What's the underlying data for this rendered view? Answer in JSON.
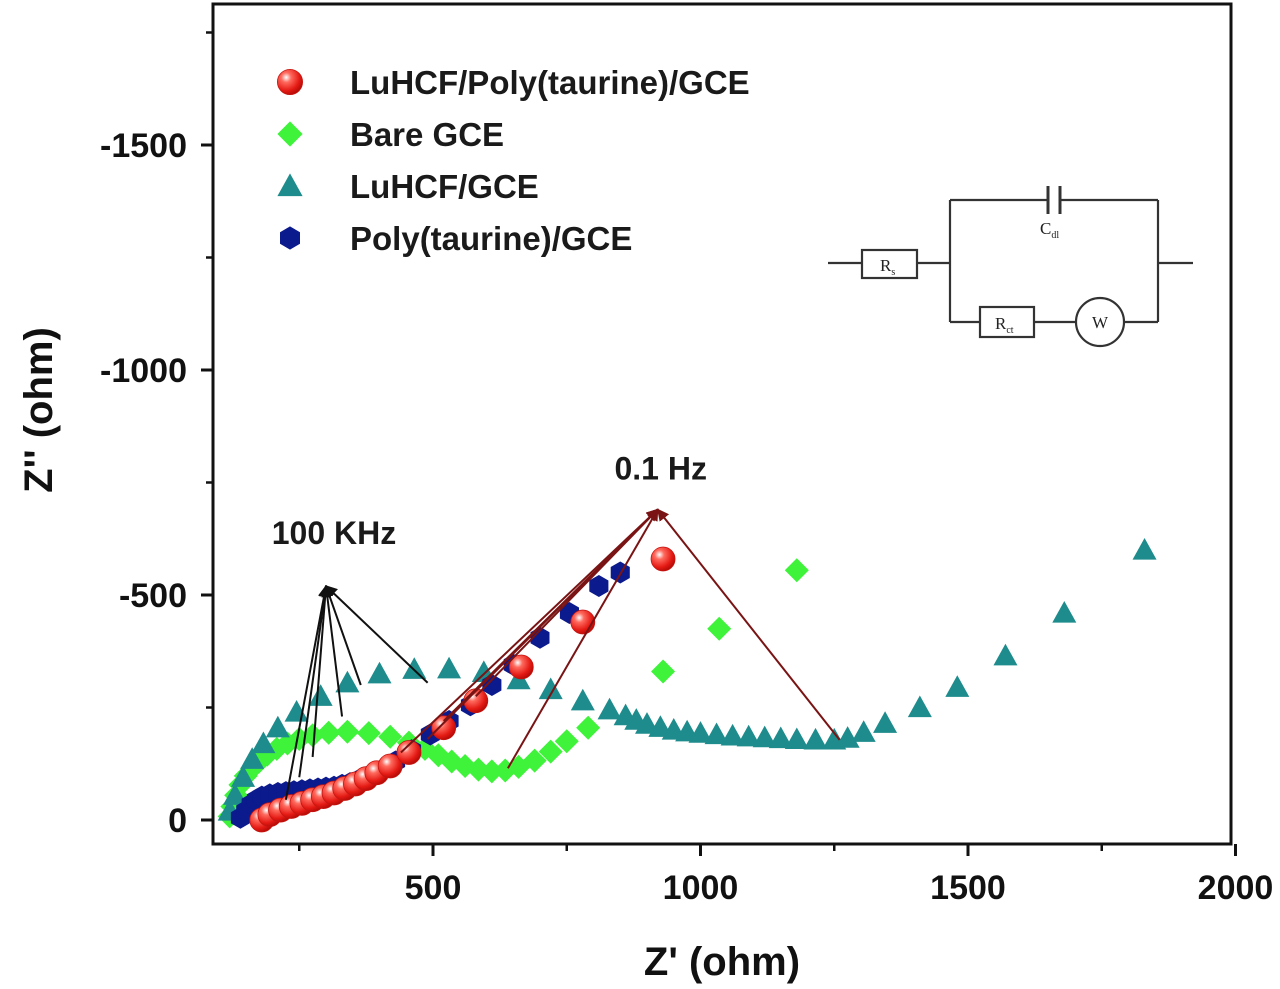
{
  "chart_data": {
    "type": "scatter",
    "title": "",
    "xlabel": "Z' (ohm)",
    "ylabel": "Z'' (ohm)",
    "xlim": [
      100,
      2000
    ],
    "ylim": [
      80,
      -1800
    ],
    "x_ticks": [
      500,
      1000,
      1500,
      2000
    ],
    "x_tick_labels": [
      "500",
      "1000",
      "1500",
      "2000"
    ],
    "y_ticks": [
      0,
      -500,
      -1000,
      -1500
    ],
    "y_tick_labels": [
      "0",
      "-500",
      "-1000",
      "-1500"
    ],
    "grid": false,
    "legend_position": "top-left",
    "series": [
      {
        "name": "LuHCF/Poly(taurine)/GCE",
        "marker": "sphere",
        "color": "#e8201c",
        "x": [
          180,
          195,
          215,
          235,
          255,
          275,
          295,
          315,
          335,
          355,
          375,
          395,
          420,
          455,
          520,
          580,
          665,
          780,
          930
        ],
        "y": [
          0,
          -12,
          -22,
          -30,
          -37,
          -45,
          -52,
          -60,
          -70,
          -80,
          -92,
          -105,
          -120,
          -150,
          -205,
          -265,
          -340,
          -440,
          -580
        ]
      },
      {
        "name": "Bare GCE",
        "marker": "diamond",
        "color": "#3ff23a",
        "x": [
          120,
          125,
          132,
          140,
          150,
          162,
          175,
          190,
          208,
          228,
          250,
          275,
          305,
          340,
          380,
          420,
          455,
          485,
          510,
          535,
          560,
          585,
          610,
          635,
          660,
          690,
          720,
          750,
          790,
          930,
          1035,
          1180
        ],
        "y": [
          -8,
          -30,
          -55,
          -78,
          -98,
          -115,
          -130,
          -145,
          -158,
          -170,
          -180,
          -188,
          -194,
          -196,
          -193,
          -185,
          -172,
          -158,
          -144,
          -130,
          -120,
          -112,
          -108,
          -110,
          -118,
          -132,
          -152,
          -175,
          -205,
          -330,
          -425,
          -555
        ],
        "sparse_points": [
          [
            790,
            -205
          ],
          [
            930,
            -330
          ],
          [
            1035,
            -425
          ],
          [
            1180,
            -555
          ]
        ]
      },
      {
        "name": "LuHCF/GCE",
        "marker": "triangle",
        "color": "#1e8c8c",
        "x": [
          120,
          130,
          145,
          162,
          183,
          210,
          245,
          290,
          340,
          400,
          465,
          530,
          595,
          660,
          720,
          780,
          830,
          860,
          880,
          900,
          925,
          950,
          975,
          1000,
          1030,
          1060,
          1090,
          1120,
          1150,
          1180,
          1215,
          1250,
          1275,
          1305,
          1345,
          1410,
          1480,
          1570,
          1680,
          1830
        ],
        "y": [
          -20,
          -55,
          -95,
          -135,
          -170,
          -205,
          -240,
          -275,
          -305,
          -325,
          -335,
          -336,
          -328,
          -312,
          -290,
          -265,
          -245,
          -232,
          -222,
          -213,
          -206,
          -200,
          -196,
          -193,
          -190,
          -187,
          -185,
          -183,
          -181,
          -179,
          -178,
          -178,
          -182,
          -195,
          -215,
          -250,
          -295,
          -365,
          -460,
          -600
        ]
      },
      {
        "name": "Poly(taurine)/GCE",
        "marker": "hexagon",
        "color": "#0b1a8c",
        "x": [
          140,
          150,
          160,
          170,
          180,
          195,
          210,
          225,
          240,
          255,
          270,
          285,
          300,
          315,
          330,
          345,
          360,
          375,
          390,
          410,
          430,
          460,
          495,
          530,
          570,
          610,
          650,
          700,
          755,
          810,
          850
        ],
        "y": [
          -5,
          -20,
          -35,
          -45,
          -52,
          -57,
          -60,
          -62,
          -64,
          -66,
          -68,
          -70,
          -72,
          -74,
          -78,
          -82,
          -88,
          -95,
          -105,
          -115,
          -130,
          -155,
          -190,
          -220,
          -255,
          -300,
          -345,
          -405,
          -460,
          -520,
          -550
        ]
      }
    ],
    "annotations": [
      {
        "text": "100 KHz",
        "target": [
          300,
          -520
        ],
        "arrow_origins": [
          [
            225,
            -45
          ],
          [
            250,
            -95
          ],
          [
            275,
            -140
          ],
          [
            330,
            -230
          ],
          [
            365,
            -300
          ],
          [
            490,
            -305
          ]
        ]
      },
      {
        "text": "0.1 Hz",
        "target": [
          920,
          -690
        ],
        "arrow_origins": [
          [
            440,
            -150
          ],
          [
            490,
            -180
          ],
          [
            520,
            -220
          ],
          [
            580,
            -275
          ],
          [
            640,
            -115
          ],
          [
            1260,
            -178
          ]
        ]
      }
    ],
    "inset": {
      "type": "equivalent-circuit",
      "components": [
        "Rs",
        "Cdl",
        "Rct",
        "W"
      ],
      "labels": {
        "rs_main": "R",
        "rs_sub": "s",
        "cdl_main": "C",
        "cdl_sub": "dl",
        "rct_main": "R",
        "rct_sub": "ct",
        "w": "W"
      }
    }
  }
}
